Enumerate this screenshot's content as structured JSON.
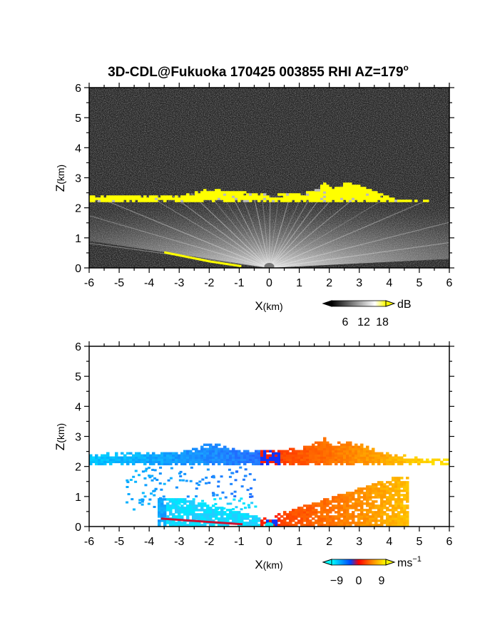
{
  "figure": {
    "title_main": "3D-CDL@Fukuoka 170425 003855 RHI AZ=179",
    "title_degree": "o"
  },
  "chart_data": [
    {
      "type": "heatmap",
      "name": "reflectivity-rhi",
      "xlabel_main": "X",
      "xlabel_unit": "(km)",
      "ylabel_main": "Z",
      "ylabel_unit": "(km)",
      "xlim": [
        -6,
        6
      ],
      "ylim": [
        0,
        6
      ],
      "xticks": [
        "-6",
        "-5",
        "-4",
        "-3",
        "-2",
        "-1",
        "0",
        "1",
        "2",
        "3",
        "4",
        "5",
        "6"
      ],
      "yticks": [
        "0",
        "1",
        "2",
        "3",
        "4",
        "5",
        "6"
      ],
      "grid": false,
      "colorbar": {
        "unit": "dB",
        "ticks": [
          "6",
          "12",
          "18"
        ],
        "tick_values": [
          6,
          12,
          18
        ],
        "range": [
          0,
          21
        ],
        "colors": [
          "#000000",
          "#ffffff",
          "#ffff00"
        ],
        "extend": "both"
      },
      "cloud_layer_top_km": [
        [
          -6,
          2.35
        ],
        [
          -4,
          2.4
        ],
        [
          -3,
          2.4
        ],
        [
          -2,
          2.6
        ],
        [
          -1,
          2.5
        ],
        [
          0,
          2.4
        ],
        [
          1,
          2.45
        ],
        [
          1.6,
          2.6
        ],
        [
          1.8,
          2.9
        ],
        [
          2.1,
          2.6
        ],
        [
          2.5,
          2.8
        ],
        [
          3,
          2.7
        ],
        [
          3.5,
          2.5
        ],
        [
          4,
          2.3
        ],
        [
          5.3,
          2.2
        ]
      ],
      "cloud_layer_base_km": 2.2,
      "surface_echo_km": [
        [
          -3.5,
          0.5
        ],
        [
          -2,
          0.2
        ],
        [
          -1,
          0.05
        ]
      ]
    },
    {
      "type": "heatmap",
      "name": "doppler-velocity-rhi",
      "xlabel_main": "X",
      "xlabel_unit": "(km)",
      "ylabel_main": "Z",
      "ylabel_unit": "(km)",
      "xlim": [
        -6,
        6
      ],
      "ylim": [
        0,
        6
      ],
      "xticks": [
        "-6",
        "-5",
        "-4",
        "-3",
        "-2",
        "-1",
        "0",
        "1",
        "2",
        "3",
        "4",
        "5",
        "6"
      ],
      "yticks": [
        "0",
        "1",
        "2",
        "3",
        "4",
        "5",
        "6"
      ],
      "grid": false,
      "colorbar": {
        "unit_main": "ms",
        "unit_exp": "−1",
        "ticks": [
          "−9",
          "0",
          "9"
        ],
        "tick_values": [
          -9,
          0,
          9
        ],
        "range": [
          -12,
          12
        ],
        "colors": [
          "#00ffff",
          "#0000ff",
          "#ff0000",
          "#ffff00"
        ],
        "extend": "both"
      },
      "cloud_layer_top_km": [
        [
          -6,
          2.4
        ],
        [
          -4,
          2.45
        ],
        [
          -3,
          2.45
        ],
        [
          -2,
          2.75
        ],
        [
          -1,
          2.55
        ],
        [
          0,
          2.5
        ],
        [
          1,
          2.6
        ],
        [
          1.6,
          2.8
        ],
        [
          1.8,
          2.95
        ],
        [
          2.1,
          2.7
        ],
        [
          2.5,
          2.85
        ],
        [
          3,
          2.7
        ],
        [
          4,
          2.4
        ],
        [
          5.5,
          2.2
        ],
        [
          6,
          2.2
        ]
      ],
      "cloud_layer_base_km": 2.05,
      "approach_velocity_negative_x": -8,
      "recede_velocity_positive_x": 8
    }
  ]
}
